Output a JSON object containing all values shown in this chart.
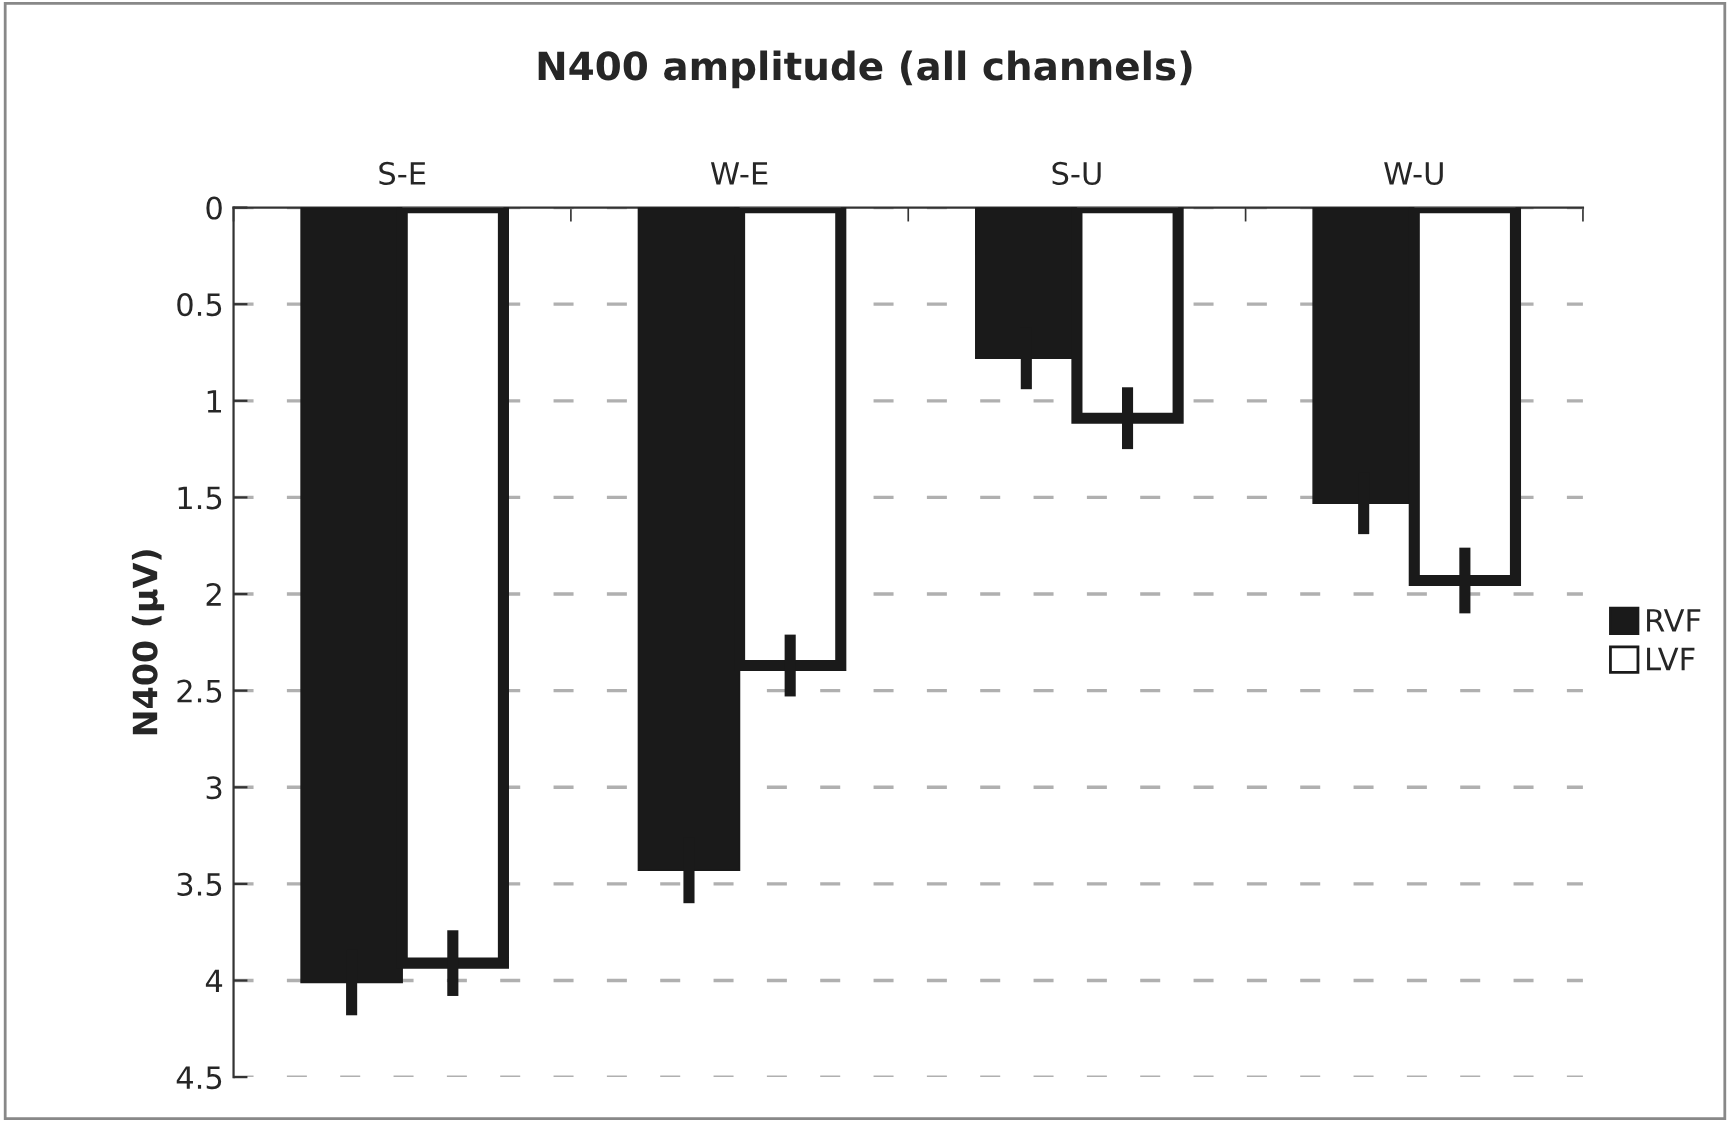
{
  "chart_data": {
    "type": "bar",
    "title": "N400 amplitude (all channels)",
    "ylabel": "N400 (µV)",
    "categories": [
      "S-E",
      "W-E",
      "S-U",
      "W-U"
    ],
    "series": [
      {
        "name": "RVF",
        "color": "#1a1a1a",
        "values": [
          4.01,
          3.43,
          0.78,
          1.53
        ],
        "errors": [
          0.17,
          0.17,
          0.16,
          0.16
        ]
      },
      {
        "name": "LVF",
        "color": "#ffffff",
        "values": [
          3.91,
          2.37,
          1.09,
          1.93
        ],
        "errors": [
          0.17,
          0.16,
          0.16,
          0.17
        ]
      }
    ],
    "ylim": [
      4.5,
      0
    ],
    "yticks": [
      0,
      0.5,
      1,
      1.5,
      2,
      2.5,
      3,
      3.5,
      4,
      4.5
    ],
    "grid": "y",
    "legend": "right",
    "line_style": "dashed"
  }
}
